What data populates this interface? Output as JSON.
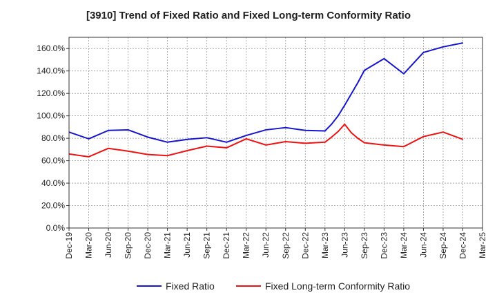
{
  "chart_data": {
    "type": "line",
    "title": "[3910]  Trend of Fixed Ratio and Fixed Long-term Conformity Ratio",
    "xlabel": "",
    "ylabel": "",
    "ylim": [
      0,
      170
    ],
    "y_ticks": [
      "0.0%",
      "20.0%",
      "40.0%",
      "60.0%",
      "80.0%",
      "100.0%",
      "120.0%",
      "140.0%",
      "160.0%"
    ],
    "y_tick_values": [
      0,
      20,
      40,
      60,
      80,
      100,
      120,
      140,
      160
    ],
    "x_ticks": [
      "Dec-19",
      "Mar-20",
      "Jun-20",
      "Sep-20",
      "Dec-20",
      "Mar-21",
      "Jun-21",
      "Sep-21",
      "Dec-21",
      "Mar-22",
      "Jun-22",
      "Sep-22",
      "Dec-22",
      "Mar-23",
      "Jun-23",
      "Sep-23",
      "Dec-23",
      "Mar-24",
      "Jun-24",
      "Sep-24",
      "Dec-24",
      "Mar-25"
    ],
    "grid": true,
    "legend_position": "bottom",
    "series": [
      {
        "name": "Fixed Ratio",
        "color": "#1515cc",
        "points": [
          {
            "x": "Dec-19",
            "y": 85.5
          },
          {
            "x": "Mar-20",
            "y": 79.5
          },
          {
            "x": "Jun-20",
            "y": 87.0
          },
          {
            "x": "Sep-20",
            "y": 87.5
          },
          {
            "x": "Dec-20",
            "y": 81.0
          },
          {
            "x": "Mar-21",
            "y": 76.5
          },
          {
            "x": "Jun-21",
            "y": 79.0
          },
          {
            "x": "Sep-21",
            "y": 80.5
          },
          {
            "x": "Dec-21",
            "y": 76.5
          },
          {
            "x": "Mar-22",
            "y": 82.5
          },
          {
            "x": "Jun-22",
            "y": 87.5
          },
          {
            "x": "Sep-22",
            "y": 89.5
          },
          {
            "x": "Dec-22",
            "y": 87.0
          },
          {
            "x": "Mar-23",
            "y": 86.5
          },
          {
            "x": "Apr-23",
            "y": 92.5
          },
          {
            "x": "May-23",
            "y": 100.0
          },
          {
            "x": "Jun-23",
            "y": 109.5
          },
          {
            "x": "Jul-23",
            "y": 119.5
          },
          {
            "x": "Aug-23",
            "y": 129.5
          },
          {
            "x": "Sep-23",
            "y": 140.5
          },
          {
            "x": "Dec-23",
            "y": 151.0
          },
          {
            "x": "Mar-24",
            "y": 137.5
          },
          {
            "x": "Jun-24",
            "y": 156.5
          },
          {
            "x": "Sep-24",
            "y": 161.5
          },
          {
            "x": "Dec-24",
            "y": 165.0
          }
        ]
      },
      {
        "name": "Fixed Long-term Conformity Ratio",
        "color": "#ee1111",
        "points": [
          {
            "x": "Dec-19",
            "y": 66.0
          },
          {
            "x": "Mar-20",
            "y": 63.5
          },
          {
            "x": "Jun-20",
            "y": 71.0
          },
          {
            "x": "Sep-20",
            "y": 68.5
          },
          {
            "x": "Dec-20",
            "y": 65.5
          },
          {
            "x": "Mar-21",
            "y": 64.5
          },
          {
            "x": "Jun-21",
            "y": 69.0
          },
          {
            "x": "Sep-21",
            "y": 73.0
          },
          {
            "x": "Dec-21",
            "y": 71.5
          },
          {
            "x": "Mar-22",
            "y": 79.5
          },
          {
            "x": "Jun-22",
            "y": 74.0
          },
          {
            "x": "Sep-22",
            "y": 77.0
          },
          {
            "x": "Dec-22",
            "y": 75.5
          },
          {
            "x": "Mar-23",
            "y": 76.5
          },
          {
            "x": "Apr-23",
            "y": 81.0
          },
          {
            "x": "May-23",
            "y": 86.0
          },
          {
            "x": "Jun-23",
            "y": 92.5
          },
          {
            "x": "Jul-23",
            "y": 85.0
          },
          {
            "x": "Aug-23",
            "y": 80.0
          },
          {
            "x": "Sep-23",
            "y": 76.0
          },
          {
            "x": "Dec-23",
            "y": 74.0
          },
          {
            "x": "Mar-24",
            "y": 72.5
          },
          {
            "x": "Jun-24",
            "y": 81.5
          },
          {
            "x": "Sep-24",
            "y": 85.5
          },
          {
            "x": "Dec-24",
            "y": 79.0
          }
        ]
      }
    ]
  }
}
